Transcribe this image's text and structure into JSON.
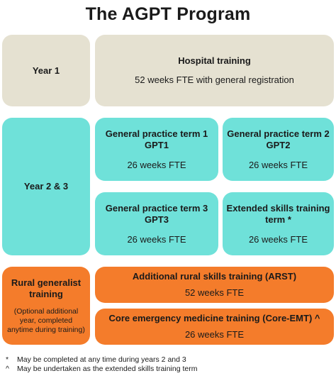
{
  "title": "The AGPT Program",
  "colors": {
    "beige": "#e5e1d1",
    "teal": "#6fe1d9",
    "orange": "#f47c2b"
  },
  "year1": {
    "label": "Year 1",
    "hospital": {
      "title": "Hospital training",
      "detail": "52 weeks FTE with general registration"
    }
  },
  "year23": {
    "label": "Year 2 & 3",
    "gpt1": {
      "title_line1": "General practice term 1",
      "title_line2": "GPT1",
      "duration": "26 weeks FTE"
    },
    "gpt2": {
      "title_line1": "General practice term 2",
      "title_line2": "GPT2",
      "duration": "26 weeks FTE"
    },
    "gpt3": {
      "title_line1": "General practice term 3",
      "title_line2": "GPT3",
      "duration": "26 weeks FTE"
    },
    "extended": {
      "title_line1": "Extended skills training",
      "title_line2": "term *",
      "duration": "26 weeks FTE"
    }
  },
  "rural": {
    "label_line1": "Rural generalist",
    "label_line2": "training",
    "note_line1": "(Optional additional",
    "note_line2": "year, completed",
    "note_line3": "anytime during training)",
    "arst": {
      "title": "Additional rural skills training (ARST)",
      "duration": "52 weeks FTE"
    },
    "core_emt": {
      "title": "Core emergency medicine training (Core-EMT) ^",
      "duration": "26 weeks FTE"
    }
  },
  "footnotes": [
    {
      "mark": "*",
      "text": "May be completed at any time during years 2 and 3"
    },
    {
      "mark": "^",
      "text": "May be undertaken as the extended skills training term"
    }
  ]
}
